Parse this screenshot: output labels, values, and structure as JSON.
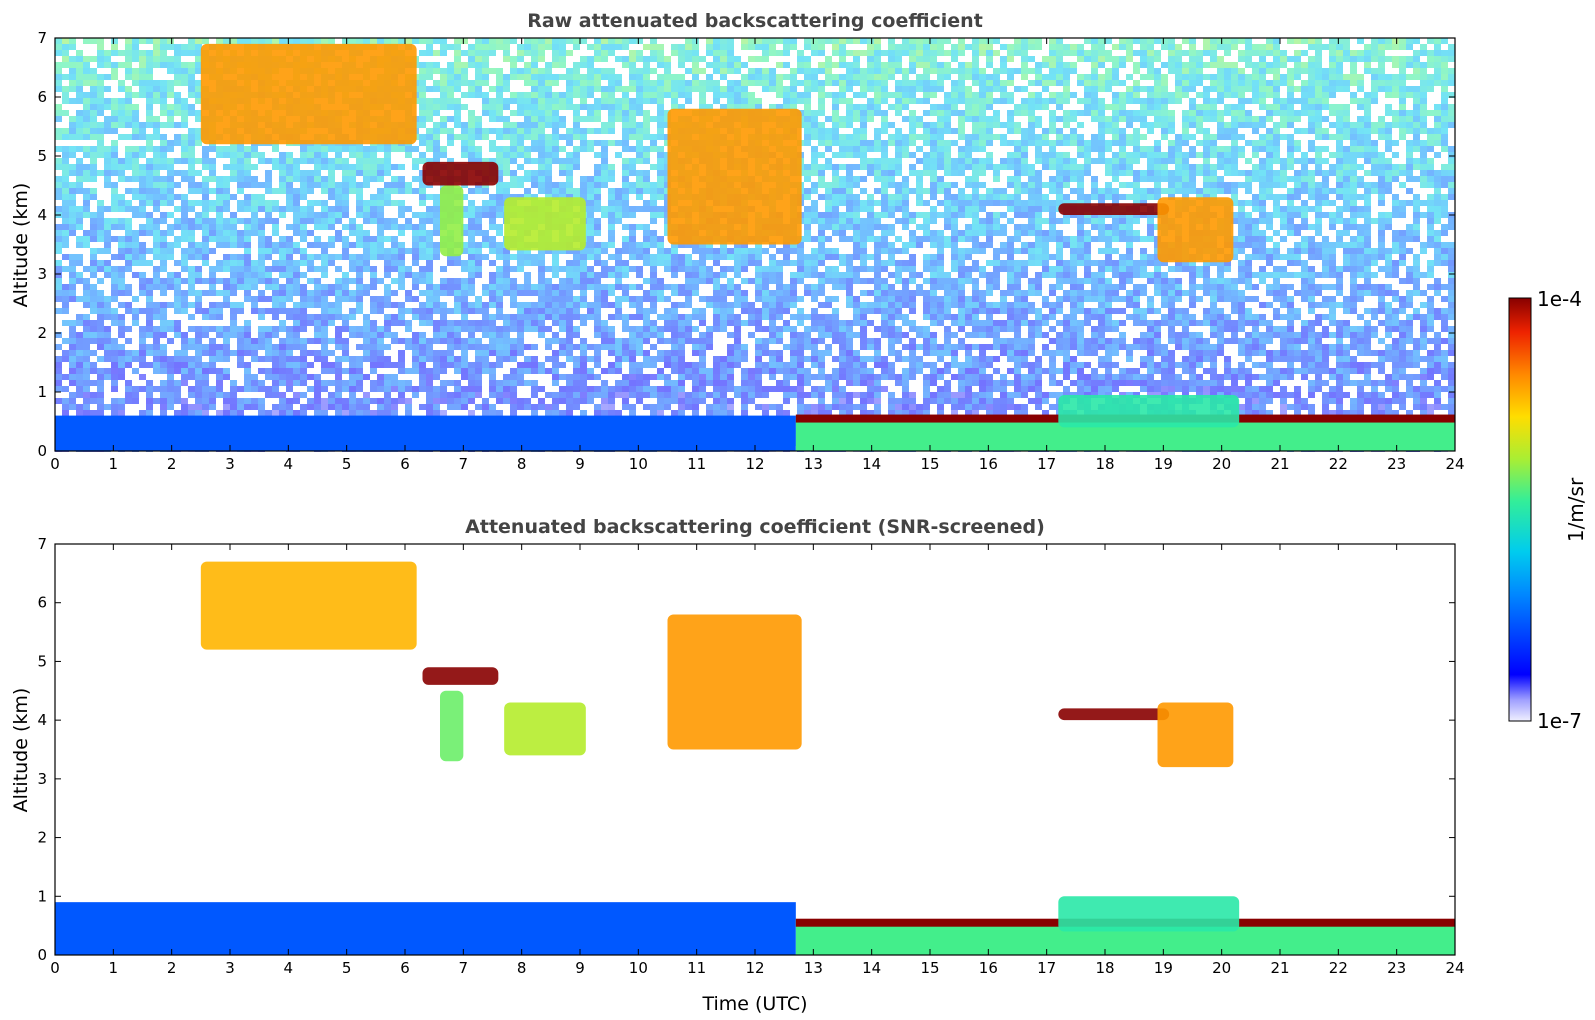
{
  "colorbar": {
    "max_label": "1e-4",
    "min_label": "1e-7",
    "unit_label": "1/m/sr",
    "colormap": "jet",
    "scale": "log"
  },
  "chart_data": [
    {
      "type": "heatmap",
      "title": "Raw attenuated backscattering coefficient",
      "xlabel": "",
      "ylabel": "Altitude (km)",
      "xlim": [
        0,
        24
      ],
      "ylim": [
        0,
        7
      ],
      "x_ticks": [
        "0",
        "1",
        "2",
        "3",
        "4",
        "5",
        "6",
        "7",
        "8",
        "9",
        "10",
        "11",
        "12",
        "13",
        "14",
        "15",
        "16",
        "17",
        "18",
        "19",
        "20",
        "21",
        "22",
        "23",
        "24"
      ],
      "y_ticks": [
        "0",
        "1",
        "2",
        "3",
        "4",
        "5",
        "6",
        "7"
      ],
      "features": [
        {
          "kind": "boundary_layer",
          "x": [
            0,
            12.7
          ],
          "y_top": 0.6,
          "log_value": -6.3
        },
        {
          "kind": "boundary_layer",
          "x": [
            12.7,
            24
          ],
          "y_top": 0.55,
          "log_value": -5.4
        },
        {
          "kind": "cloud_layer",
          "x": [
            12.7,
            24
          ],
          "y": 0.55,
          "log_value": -4.0
        },
        {
          "kind": "aerosol_layer",
          "x": [
            17.2,
            20.3
          ],
          "y": [
            0.4,
            0.95
          ],
          "log_value": -5.5
        },
        {
          "kind": "cirrus",
          "x": [
            2.5,
            6.2
          ],
          "y": [
            5.2,
            6.9
          ],
          "log_value": -4.6
        },
        {
          "kind": "cirrus",
          "x": [
            6.3,
            7.6
          ],
          "y": [
            4.5,
            4.9
          ],
          "log_value": -4.0
        },
        {
          "kind": "cirrus",
          "x": [
            6.6,
            7.0
          ],
          "y": [
            3.3,
            4.5
          ],
          "log_value": -5.2
        },
        {
          "kind": "cirrus",
          "x": [
            7.7,
            9.1
          ],
          "y": [
            3.4,
            4.3
          ],
          "log_value": -5.1
        },
        {
          "kind": "cirrus",
          "x": [
            10.5,
            12.8
          ],
          "y": [
            3.5,
            5.8
          ],
          "log_value": -4.6
        },
        {
          "kind": "cirrus",
          "x": [
            17.2,
            19.1
          ],
          "y": [
            4.0,
            4.2
          ],
          "log_value": -4.0
        },
        {
          "kind": "cirrus",
          "x": [
            18.9,
            20.2
          ],
          "y": [
            3.2,
            4.3
          ],
          "log_value": -4.6
        }
      ]
    },
    {
      "type": "heatmap",
      "title": "Attenuated backscattering coefficient (SNR-screened)",
      "xlabel": "Time (UTC)",
      "ylabel": "Altitude (km)",
      "xlim": [
        0,
        24
      ],
      "ylim": [
        0,
        7
      ],
      "x_ticks": [
        "0",
        "1",
        "2",
        "3",
        "4",
        "5",
        "6",
        "7",
        "8",
        "9",
        "10",
        "11",
        "12",
        "13",
        "14",
        "15",
        "16",
        "17",
        "18",
        "19",
        "20",
        "21",
        "22",
        "23",
        "24"
      ],
      "y_ticks": [
        "0",
        "1",
        "2",
        "3",
        "4",
        "5",
        "6",
        "7"
      ],
      "features": [
        {
          "kind": "boundary_layer",
          "x": [
            0,
            12.7
          ],
          "y_top": 0.9,
          "log_value": -6.3
        },
        {
          "kind": "boundary_layer",
          "x": [
            12.7,
            24
          ],
          "y_top": 0.6,
          "log_value": -5.4
        },
        {
          "kind": "cloud_layer",
          "x": [
            12.7,
            24
          ],
          "y": 0.55,
          "log_value": -3.9
        },
        {
          "kind": "aerosol_layer",
          "x": [
            17.2,
            20.3
          ],
          "y": [
            0.4,
            1.0
          ],
          "log_value": -5.5
        },
        {
          "kind": "cirrus",
          "x": [
            2.5,
            6.2
          ],
          "y": [
            5.2,
            6.7
          ],
          "log_value": -4.7
        },
        {
          "kind": "cirrus",
          "x": [
            6.3,
            7.6
          ],
          "y": [
            4.6,
            4.9
          ],
          "log_value": -4.0
        },
        {
          "kind": "cirrus",
          "x": [
            6.6,
            7.0
          ],
          "y": [
            3.3,
            4.5
          ],
          "log_value": -5.3
        },
        {
          "kind": "cirrus",
          "x": [
            7.7,
            9.1
          ],
          "y": [
            3.4,
            4.3
          ],
          "log_value": -5.1
        },
        {
          "kind": "cirrus",
          "x": [
            10.5,
            12.8
          ],
          "y": [
            3.5,
            5.8
          ],
          "log_value": -4.6
        },
        {
          "kind": "cirrus",
          "x": [
            17.2,
            19.1
          ],
          "y": [
            4.0,
            4.2
          ],
          "log_value": -3.9
        },
        {
          "kind": "cirrus",
          "x": [
            18.9,
            20.2
          ],
          "y": [
            3.2,
            4.3
          ],
          "log_value": -4.6
        }
      ]
    }
  ]
}
